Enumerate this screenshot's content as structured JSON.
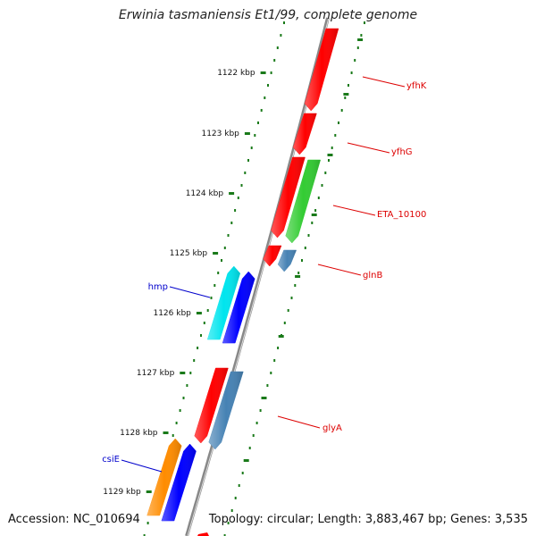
{
  "title": "Erwinia tasmaniensis Et1/99, complete genome",
  "footer": {
    "accession": "Accession: NC_010694",
    "topology": "Topology: circular; Length: 3,883,467 bp; Genes: 3,535"
  },
  "colors": {
    "backbone": "#888888",
    "ticks": "#1a7a1a",
    "label_red": "#dd0000",
    "label_blue": "#0000cc"
  },
  "scale_labels": [
    "1122 kbp",
    "1123 kbp",
    "1124 kbp",
    "1125 kbp",
    "1126 kbp",
    "1127 kbp",
    "1128 kbp",
    "1129 kbp"
  ],
  "gene_labels": [
    {
      "text": "yfhK",
      "color": "#dd0000"
    },
    {
      "text": "yfhG",
      "color": "#dd0000"
    },
    {
      "text": "ETA_10100",
      "color": "#dd0000"
    },
    {
      "text": "glnB",
      "color": "#dd0000"
    },
    {
      "text": "glyA",
      "color": "#dd0000"
    },
    {
      "text": "hmp",
      "color": "#0000cc"
    },
    {
      "text": "csiE",
      "color": "#0000cc"
    }
  ],
  "features": [
    {
      "color": "#ff0000",
      "strand": "-",
      "kind": "gene"
    },
    {
      "color": "#ff0000",
      "strand": "-",
      "kind": "gene"
    },
    {
      "color": "#ff0000",
      "strand": "-",
      "kind": "gene"
    },
    {
      "color": "#33cc33",
      "strand": "-",
      "kind": "cds"
    },
    {
      "color": "#ff0000",
      "strand": "-",
      "kind": "gene"
    },
    {
      "color": "#4682b4",
      "strand": "-",
      "kind": "cds"
    },
    {
      "color": "#00e5ee",
      "strand": "+",
      "kind": "cds"
    },
    {
      "color": "#0000ff",
      "strand": "+",
      "kind": "gene"
    },
    {
      "color": "#ff0000",
      "strand": "-",
      "kind": "gene"
    },
    {
      "color": "#4682b4",
      "strand": "-",
      "kind": "cds"
    },
    {
      "color": "#ff8c00",
      "strand": "+",
      "kind": "cds"
    },
    {
      "color": "#0000ff",
      "strand": "+",
      "kind": "gene"
    }
  ]
}
